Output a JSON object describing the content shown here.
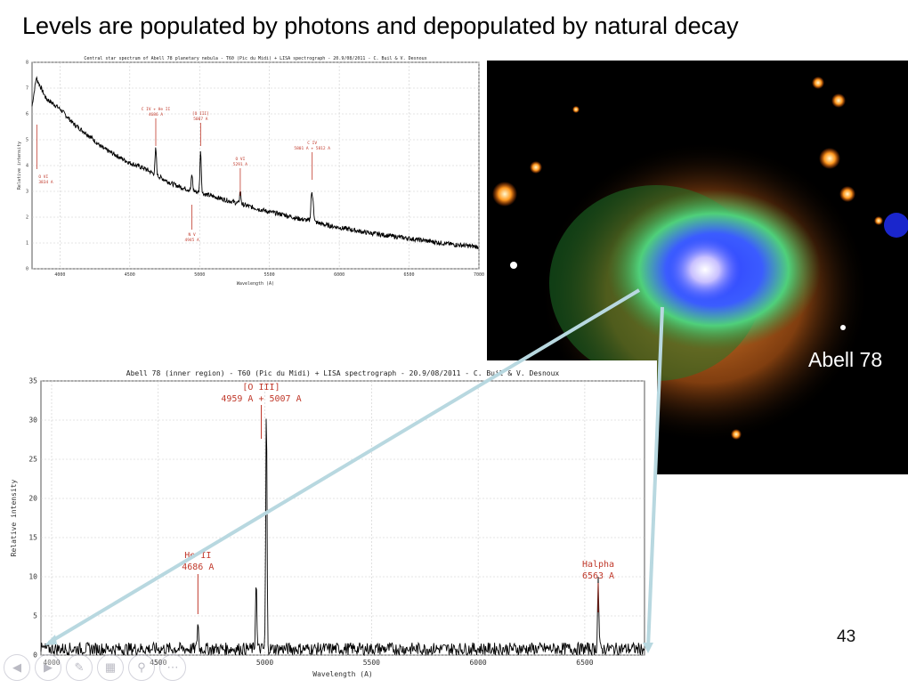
{
  "slide": {
    "title": "Levels are populated by photons and depopulated by natural decay",
    "page_number": "43",
    "image_label": "Abell 78",
    "colors": {
      "emission_label": "#c0392b",
      "connector": "#b8d8e0",
      "spectrum": "#000000"
    }
  },
  "nav_icons": [
    "previous-icon",
    "next-icon",
    "pen-icon",
    "slides-icon",
    "zoom-icon",
    "more-icon"
  ],
  "chart_data": [
    {
      "type": "line",
      "title": "Central star spectrum of Abell 78 planetary nebula - T60 (Pic du Midi) + LISA spectrograph - 20.9/08/2011 - C. Buil & V. Desnoux",
      "xlabel": "Wavelength (A)",
      "ylabel": "Relative intensity",
      "xlim": [
        3800,
        7000
      ],
      "ylim": [
        0,
        8
      ],
      "xticks": [
        "4000",
        "4500",
        "5000",
        "5500",
        "6000",
        "6500",
        "7000"
      ],
      "yticks": [
        "0",
        "1",
        "2",
        "3",
        "4",
        "5",
        "6",
        "7",
        "8"
      ],
      "grid": true,
      "series": [
        {
          "continuum_x": [
            3800,
            3830,
            3900,
            4000,
            4100,
            4200,
            4300,
            4400,
            4500,
            4600,
            4700,
            4800,
            4900,
            5000,
            5100,
            5200,
            5300,
            5400,
            5500,
            5600,
            5700,
            5800,
            5900,
            6000,
            6200,
            6400,
            6600,
            6800,
            7000
          ],
          "continuum_y": [
            6.3,
            7.4,
            6.6,
            6.2,
            5.6,
            5.2,
            4.7,
            4.4,
            4.1,
            3.9,
            3.6,
            3.3,
            3.1,
            2.95,
            2.8,
            2.65,
            2.5,
            2.35,
            2.2,
            2.1,
            1.95,
            1.85,
            1.7,
            1.6,
            1.4,
            1.25,
            1.1,
            0.95,
            0.85
          ],
          "peaks": [
            {
              "x": 4686,
              "y": 1.0
            },
            {
              "x": 4945,
              "y": 0.6
            },
            {
              "x": 5007,
              "y": 1.6
            },
            {
              "x": 5291,
              "y": 0.5
            },
            {
              "x": 5801,
              "y": 1.0
            },
            {
              "x": 5812,
              "y": 0.8
            }
          ]
        }
      ],
      "annotations": [
        {
          "label": "C IV + He II",
          "sub": "4686 A",
          "x": 4686,
          "tick": "down"
        },
        {
          "label": "[O III]",
          "sub": "5007 A",
          "x": 5007,
          "tick": "down"
        },
        {
          "label": "O VI",
          "sub": "5291 A",
          "x": 5291,
          "tick": "down"
        },
        {
          "label": "C IV",
          "sub": "5801 A + 5812 A",
          "x": 5806,
          "tick": "down"
        },
        {
          "label": "N V",
          "sub": "4945 A",
          "x": 4945,
          "tick": "up"
        },
        {
          "label": "O VI",
          "sub": "3834 A",
          "x": 3834,
          "tick": "left"
        }
      ]
    },
    {
      "type": "line",
      "title": "Abell 78 (inner region) - T60 (Pic du Midi) + LISA spectrograph - 20.9/08/2011 - C. Buil & V. Desnoux",
      "xlabel": "Wavelength (A)",
      "ylabel": "Relative intensity",
      "xlim": [
        3950,
        6780
      ],
      "ylim": [
        0,
        35
      ],
      "xticks": [
        "4000",
        "4500",
        "5000",
        "5500",
        "6000",
        "6500"
      ],
      "yticks": [
        "0",
        "5",
        "10",
        "15",
        "20",
        "25",
        "30",
        "35"
      ],
      "grid": true,
      "series": [
        {
          "baseline": 0.8,
          "peaks": [
            {
              "x": 4686,
              "y": 3.5
            },
            {
              "x": 4959,
              "y": 9.0
            },
            {
              "x": 5007,
              "y": 31.0
            },
            {
              "x": 6563,
              "y": 9.0
            }
          ]
        }
      ],
      "annotations": [
        {
          "label": "[O III]",
          "sub": "4959 A + 5007 A",
          "x": 4983
        },
        {
          "label": "He II",
          "sub": "4686 A",
          "x": 4686
        },
        {
          "label": "Halpha",
          "sub": "6563 A",
          "x": 6563
        }
      ]
    }
  ]
}
